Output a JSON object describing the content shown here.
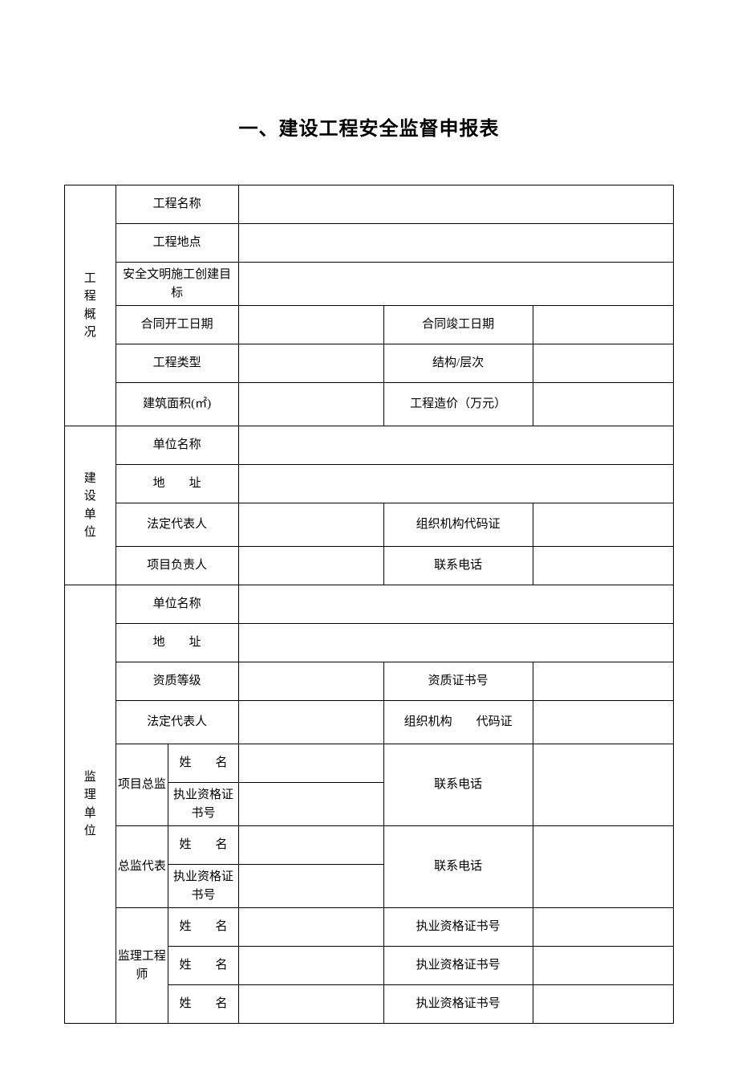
{
  "title": "一、建设工程安全监督申报表",
  "sections": {
    "project": {
      "header": "工\n程\n概\n况",
      "name_label": "工程名称",
      "location_label": "工程地点",
      "safety_target_label": "安全文明施工创建目标",
      "contract_start_label": "合同开工日期",
      "contract_end_label": "合同竣工日期",
      "type_label": "工程类型",
      "structure_label": "结构/层次",
      "area_label": "建筑面积(㎡)",
      "cost_label": "工程造价（万元）"
    },
    "construction": {
      "header": "建\n设\n单\n位",
      "unit_name_label": "单位名称",
      "address_label": "地　　址",
      "legal_rep_label": "法定代表人",
      "org_code_label": "组织机构代码证",
      "pm_label": "项目负责人",
      "phone_label": "联系电话"
    },
    "supervision": {
      "header": "监\n理\n单\n位",
      "unit_name_label": "单位名称",
      "address_label": "地　　址",
      "qual_level_label": "资质等级",
      "qual_cert_label": "资质证书号",
      "legal_rep_label": "法定代表人",
      "org_code_label": "组织机构　　代码证",
      "director_label": "项目总监",
      "deputy_label": "总监代表",
      "engineer_label": "监理工程师",
      "name_label": "姓　　名",
      "cert_num_label": "执业资格证书号",
      "phone_label": "联系电话"
    }
  }
}
